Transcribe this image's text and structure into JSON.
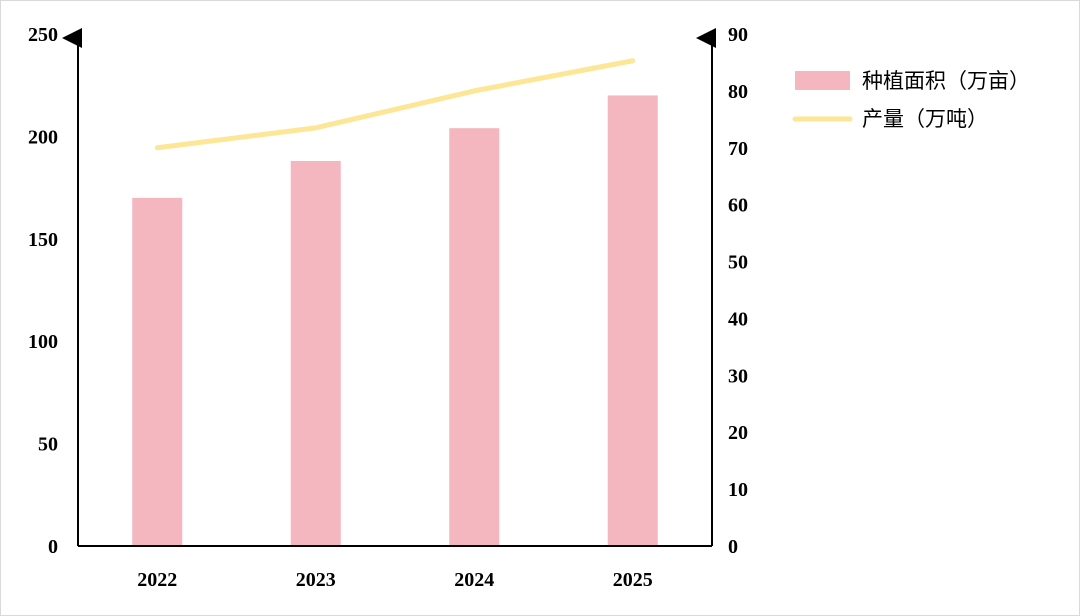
{
  "chart_data": {
    "type": "bar",
    "categories": [
      "2022",
      "2023",
      "2024",
      "2025"
    ],
    "series": [
      {
        "name": "种植面积（万亩）",
        "type": "bar",
        "axis": "left",
        "values": [
          170,
          188,
          204,
          220
        ],
        "color": "#f4b6bf"
      },
      {
        "name": "产量（万吨）",
        "type": "line",
        "axis": "right",
        "values": [
          70,
          73.5,
          80,
          85.3
        ],
        "color": "#fde695"
      }
    ],
    "y_left": {
      "min": 0,
      "max": 250,
      "ticks": [
        "0",
        "50",
        "100",
        "150",
        "200",
        "250"
      ]
    },
    "y_right": {
      "min": 0,
      "max": 90,
      "ticks": [
        "0",
        "10",
        "20",
        "30",
        "40",
        "50",
        "60",
        "70",
        "80",
        "90"
      ]
    },
    "title": "",
    "legend_position": "right",
    "grid": false
  }
}
